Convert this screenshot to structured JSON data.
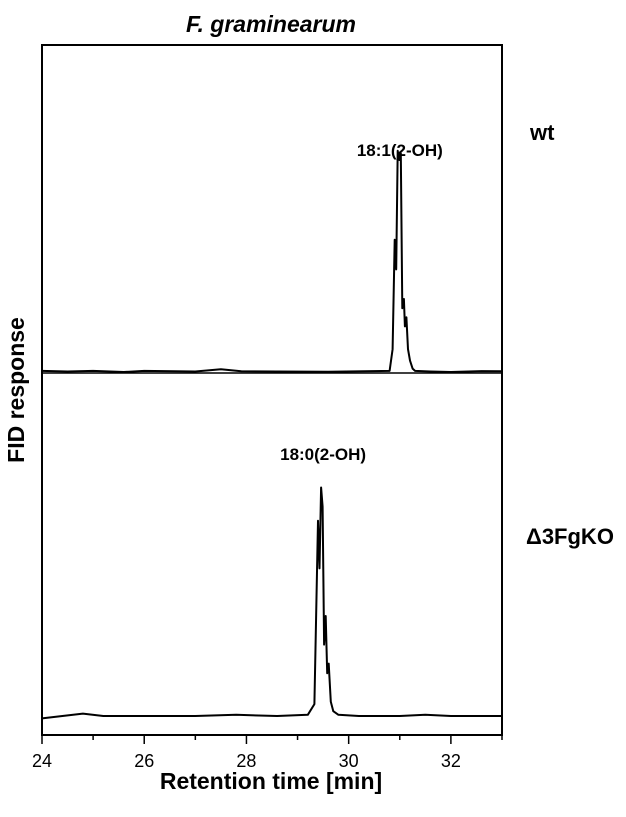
{
  "chart_data": {
    "type": "line",
    "title": "F. graminearum",
    "xlabel": "Retention time [min]",
    "ylabel": "FID response",
    "xlim": [
      24,
      33
    ],
    "xticks": [
      24,
      26,
      28,
      30,
      32
    ],
    "grid": false,
    "panels": [
      {
        "name": "wt",
        "peak_label": "18:1(2-OH)",
        "peak_x": 31.0,
        "ylim": [
          0,
          1
        ],
        "x": [
          24.0,
          24.5,
          25.0,
          25.6,
          26.0,
          27.0,
          27.5,
          27.9,
          28.6,
          29.6,
          30.3,
          30.8,
          30.86,
          30.9,
          30.93,
          30.96,
          30.99,
          31.02,
          31.05,
          31.08,
          31.1,
          31.13,
          31.16,
          31.2,
          31.25,
          31.3,
          31.6,
          32.0,
          32.6,
          33.0
        ],
        "y": [
          0.005,
          0.002,
          0.005,
          0.0,
          0.005,
          0.002,
          0.012,
          0.003,
          0.002,
          0.001,
          0.003,
          0.005,
          0.1,
          0.58,
          0.45,
          0.97,
          0.93,
          0.96,
          0.28,
          0.32,
          0.2,
          0.24,
          0.1,
          0.05,
          0.015,
          0.005,
          0.002,
          0.0,
          0.004,
          0.003
        ]
      },
      {
        "name": "Δ3FgKO",
        "peak_label": "18:0(2-OH)",
        "peak_x": 29.5,
        "ylim": [
          0,
          1
        ],
        "x": [
          24.0,
          24.4,
          24.8,
          25.2,
          26.0,
          27.0,
          27.8,
          28.6,
          29.2,
          29.33,
          29.37,
          29.4,
          29.43,
          29.46,
          29.49,
          29.52,
          29.55,
          29.58,
          29.61,
          29.65,
          29.7,
          29.8,
          30.2,
          31.0,
          31.5,
          32.0,
          33.0
        ],
        "y": [
          -0.01,
          0.0,
          0.01,
          0.0,
          0.0,
          0.0,
          0.005,
          0.0,
          0.005,
          0.05,
          0.5,
          0.82,
          0.62,
          0.96,
          0.88,
          0.3,
          0.42,
          0.18,
          0.22,
          0.06,
          0.02,
          0.005,
          0.0,
          0.0,
          0.005,
          0.0,
          0.0
        ]
      }
    ]
  }
}
